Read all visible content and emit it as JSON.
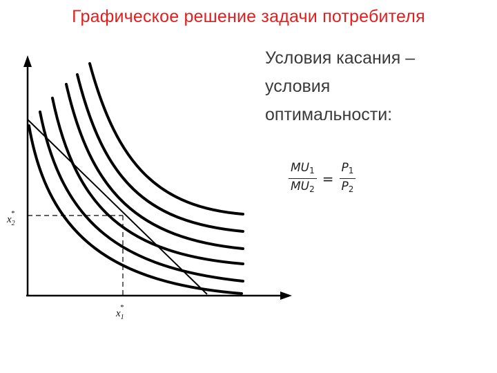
{
  "title": "Графическое решение задачи потребителя",
  "text_lines": [
    "Условия касания –",
    "условия",
    "оптимальности:"
  ],
  "formula": {
    "left_num": {
      "base": "MU",
      "sub": "1"
    },
    "left_den": {
      "base": "MU",
      "sub": "2"
    },
    "equals": "=",
    "right_num": {
      "base": "P",
      "sub": "1"
    },
    "right_den": {
      "base": "P",
      "sub": "2"
    }
  },
  "axis_labels": {
    "y_opt": {
      "base": "x",
      "sup": "*",
      "sub": "2"
    },
    "x_opt": {
      "base": "x",
      "sup": "*",
      "sub": "1"
    }
  },
  "colors": {
    "title": "#e02020",
    "text": "#3a3a3a",
    "lines": "#000000"
  }
}
